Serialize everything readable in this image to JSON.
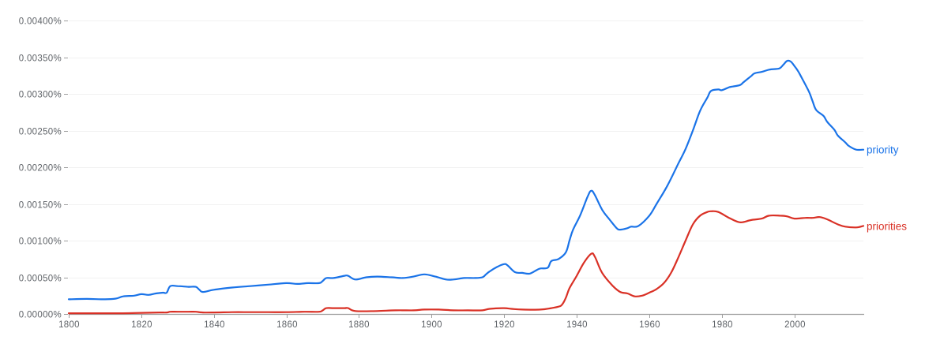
{
  "chart_data": {
    "type": "line",
    "title": "",
    "xlabel": "",
    "ylabel": "",
    "xlim": [
      1800,
      2019
    ],
    "ylim": [
      0,
      0.004
    ],
    "grid": true,
    "legend_position": "inline-right",
    "x_ticks": [
      1800,
      1820,
      1840,
      1860,
      1880,
      1900,
      1920,
      1940,
      1960,
      1980,
      2000
    ],
    "x_tick_labels": [
      "1800",
      "1820",
      "1840",
      "1860",
      "1880",
      "1900",
      "1920",
      "1940",
      "1960",
      "1980",
      "2000"
    ],
    "y_ticks": [
      0,
      0.0005,
      0.001,
      0.0015,
      0.002,
      0.0025,
      0.003,
      0.0035,
      0.004
    ],
    "y_tick_labels": [
      "0.00000%",
      "0.00050%",
      "0.00100%",
      "0.00150%",
      "0.00200%",
      "0.00250%",
      "0.00300%",
      "0.00350%",
      "0.00400%"
    ],
    "series": [
      {
        "name": "priority",
        "color": "#1a73e8",
        "x": [
          1800,
          1805,
          1810,
          1813,
          1815,
          1818,
          1820,
          1822,
          1824,
          1826,
          1827,
          1828,
          1830,
          1833,
          1835,
          1836,
          1837,
          1840,
          1845,
          1850,
          1855,
          1860,
          1863,
          1866,
          1869,
          1870,
          1871,
          1873,
          1876,
          1877,
          1879,
          1882,
          1885,
          1889,
          1892,
          1895,
          1898,
          1901,
          1904,
          1906,
          1909,
          1912,
          1914,
          1915,
          1916,
          1918,
          1920,
          1921,
          1923,
          1925,
          1927,
          1929,
          1930,
          1932,
          1933,
          1935,
          1937,
          1938,
          1939,
          1941,
          1943,
          1944,
          1945,
          1947,
          1949,
          1951,
          1952,
          1954,
          1955,
          1957,
          1960,
          1962,
          1965,
          1968,
          1970,
          1972,
          1974,
          1976,
          1977,
          1979,
          1980,
          1982,
          1983,
          1985,
          1986,
          1988,
          1989,
          1991,
          1993,
          1995,
          1996,
          1997,
          1998,
          1999,
          2000,
          2001,
          2002,
          2004,
          2005,
          2006,
          2008,
          2009,
          2011,
          2012,
          2014,
          2015,
          2017,
          2019
        ],
        "values": [
          0.0002,
          0.000205,
          0.0002,
          0.00021,
          0.00024,
          0.00025,
          0.00027,
          0.00026,
          0.00028,
          0.00029,
          0.00029,
          0.00038,
          0.00038,
          0.00037,
          0.00037,
          0.00033,
          0.0003,
          0.00033,
          0.00036,
          0.00038,
          0.0004,
          0.00042,
          0.00041,
          0.00042,
          0.00042,
          0.00045,
          0.00049,
          0.00049,
          0.00052,
          0.00052,
          0.00047,
          0.0005,
          0.00051,
          0.0005,
          0.00049,
          0.00051,
          0.00054,
          0.00051,
          0.00047,
          0.00047,
          0.00049,
          0.00049,
          0.0005,
          0.00054,
          0.00058,
          0.00064,
          0.00068,
          0.00066,
          0.00057,
          0.00056,
          0.00055,
          0.0006,
          0.00062,
          0.00063,
          0.00072,
          0.00075,
          0.00084,
          0.001,
          0.00115,
          0.00135,
          0.0016,
          0.00168,
          0.00162,
          0.00142,
          0.00129,
          0.00117,
          0.00115,
          0.00117,
          0.00119,
          0.0012,
          0.00134,
          0.0015,
          0.00175,
          0.00205,
          0.00225,
          0.0025,
          0.00277,
          0.00295,
          0.00304,
          0.00306,
          0.00305,
          0.00309,
          0.0031,
          0.00312,
          0.00316,
          0.00324,
          0.00328,
          0.0033,
          0.00333,
          0.00334,
          0.00335,
          0.0034,
          0.00345,
          0.00344,
          0.00338,
          0.00331,
          0.00322,
          0.00303,
          0.0029,
          0.00278,
          0.0027,
          0.00262,
          0.00251,
          0.00243,
          0.00234,
          0.00229,
          0.00224,
          0.00224
        ]
      },
      {
        "name": "priorities",
        "color": "#d93025",
        "x": [
          1800,
          1805,
          1810,
          1815,
          1820,
          1825,
          1827,
          1828,
          1830,
          1833,
          1835,
          1837,
          1840,
          1845,
          1850,
          1855,
          1860,
          1865,
          1869,
          1870,
          1871,
          1873,
          1876,
          1877,
          1879,
          1885,
          1890,
          1895,
          1898,
          1902,
          1906,
          1910,
          1914,
          1916,
          1920,
          1922,
          1925,
          1930,
          1933,
          1935,
          1936,
          1937,
          1938,
          1940,
          1942,
          1944,
          1945,
          1947,
          1950,
          1952,
          1954,
          1956,
          1958,
          1960,
          1962,
          1964,
          1966,
          1968,
          1970,
          1972,
          1974,
          1976,
          1977,
          1979,
          1982,
          1985,
          1988,
          1991,
          1993,
          1996,
          1998,
          2000,
          2003,
          2005,
          2007,
          2009,
          2012,
          2014,
          2017,
          2019
        ],
        "values": [
          1e-05,
          1e-05,
          1e-05,
          1e-05,
          1.5e-05,
          2e-05,
          2e-05,
          3e-05,
          3e-05,
          3e-05,
          3e-05,
          2e-05,
          2e-05,
          2.5e-05,
          2.5e-05,
          2.5e-05,
          2.5e-05,
          3e-05,
          3e-05,
          5e-05,
          8e-05,
          8e-05,
          8e-05,
          8e-05,
          4e-05,
          4e-05,
          5e-05,
          5e-05,
          6e-05,
          6e-05,
          5e-05,
          5e-05,
          5e-05,
          7e-05,
          8e-05,
          7e-05,
          6e-05,
          6e-05,
          8e-05,
          0.0001,
          0.00013,
          0.00022,
          0.00035,
          0.00052,
          0.0007,
          0.00082,
          0.00078,
          0.00056,
          0.00038,
          0.0003,
          0.00028,
          0.00024,
          0.00025,
          0.00029,
          0.00034,
          0.00042,
          0.00056,
          0.00077,
          0.001,
          0.00122,
          0.00134,
          0.00139,
          0.0014,
          0.00139,
          0.00131,
          0.00125,
          0.00128,
          0.0013,
          0.00134,
          0.00134,
          0.00133,
          0.0013,
          0.00131,
          0.00131,
          0.00132,
          0.00129,
          0.00122,
          0.00119,
          0.00118,
          0.0012
        ]
      }
    ]
  }
}
